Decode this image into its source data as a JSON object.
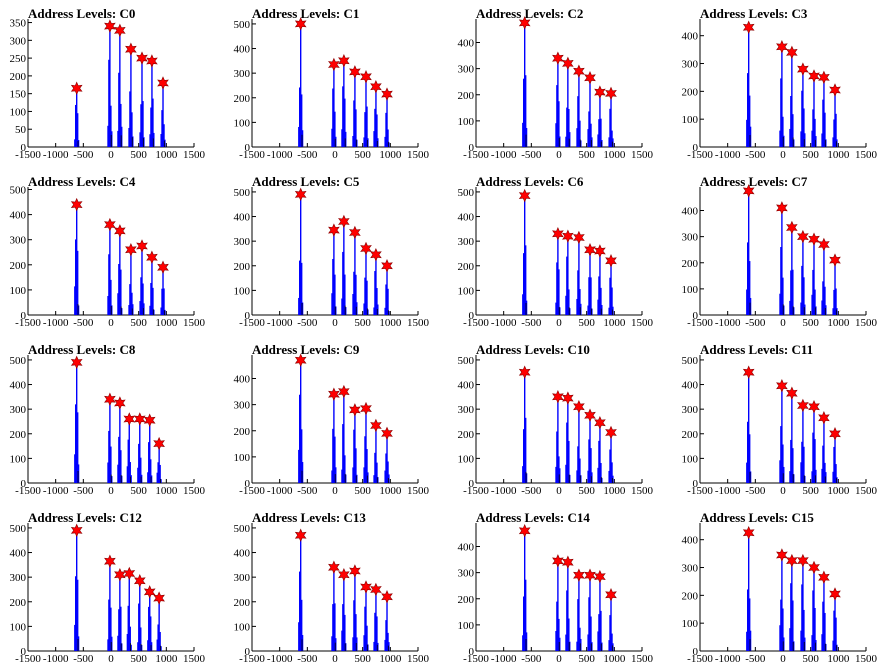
{
  "chart_data": [
    {
      "type": "bar",
      "title": "Address Levels: C0",
      "xlim": [
        -1500,
        1500
      ],
      "ylim": [
        0,
        360
      ],
      "yticks": [
        0,
        50,
        100,
        150,
        200,
        250,
        300,
        350
      ],
      "xticks": [
        -1500,
        -1000,
        -500,
        0,
        500,
        1000,
        1500
      ],
      "peaks": [
        {
          "x": -620,
          "y": 165
        },
        {
          "x": -20,
          "y": 340
        },
        {
          "x": 160,
          "y": 328
        },
        {
          "x": 360,
          "y": 275
        },
        {
          "x": 560,
          "y": 250
        },
        {
          "x": 740,
          "y": 242
        },
        {
          "x": 940,
          "y": 180
        }
      ]
    },
    {
      "type": "bar",
      "title": "Address Levels: C1",
      "xlim": [
        -1500,
        1500
      ],
      "ylim": [
        0,
        520
      ],
      "yticks": [
        0,
        100,
        200,
        300,
        400,
        500
      ],
      "xticks": [
        -1500,
        -1000,
        -500,
        0,
        500,
        1000,
        1500
      ],
      "peaks": [
        {
          "x": -620,
          "y": 500
        },
        {
          "x": -20,
          "y": 335
        },
        {
          "x": 160,
          "y": 350
        },
        {
          "x": 360,
          "y": 305
        },
        {
          "x": 560,
          "y": 285
        },
        {
          "x": 740,
          "y": 245
        },
        {
          "x": 940,
          "y": 215
        }
      ]
    },
    {
      "type": "bar",
      "title": "Address Levels: C2",
      "xlim": [
        -1500,
        1500
      ],
      "ylim": [
        0,
        490
      ],
      "yticks": [
        0,
        100,
        200,
        300,
        400
      ],
      "xticks": [
        -1500,
        -1000,
        -500,
        0,
        500,
        1000,
        1500
      ],
      "peaks": [
        {
          "x": -620,
          "y": 475
        },
        {
          "x": -20,
          "y": 340
        },
        {
          "x": 160,
          "y": 320
        },
        {
          "x": 360,
          "y": 290
        },
        {
          "x": 560,
          "y": 265
        },
        {
          "x": 740,
          "y": 210
        },
        {
          "x": 940,
          "y": 205
        }
      ]
    },
    {
      "type": "bar",
      "title": "Address Levels: C3",
      "xlim": [
        -1500,
        1500
      ],
      "ylim": [
        0,
        460
      ],
      "yticks": [
        0,
        100,
        200,
        300,
        400
      ],
      "xticks": [
        -1500,
        -1000,
        -500,
        0,
        500,
        1000,
        1500
      ],
      "peaks": [
        {
          "x": -620,
          "y": 430
        },
        {
          "x": -20,
          "y": 360
        },
        {
          "x": 160,
          "y": 340
        },
        {
          "x": 360,
          "y": 280
        },
        {
          "x": 560,
          "y": 255
        },
        {
          "x": 740,
          "y": 250
        },
        {
          "x": 940,
          "y": 205
        }
      ]
    },
    {
      "type": "bar",
      "title": "Address Levels: C4",
      "xlim": [
        -1500,
        1500
      ],
      "ylim": [
        0,
        510
      ],
      "yticks": [
        0,
        100,
        200,
        300,
        400,
        500
      ],
      "xticks": [
        -1500,
        -1000,
        -500,
        0,
        500,
        1000,
        1500
      ],
      "peaks": [
        {
          "x": -620,
          "y": 440
        },
        {
          "x": -20,
          "y": 360
        },
        {
          "x": 160,
          "y": 335
        },
        {
          "x": 360,
          "y": 260
        },
        {
          "x": 560,
          "y": 275
        },
        {
          "x": 740,
          "y": 230
        },
        {
          "x": 940,
          "y": 190
        }
      ]
    },
    {
      "type": "bar",
      "title": "Address Levels: C5",
      "xlim": [
        -1500,
        1500
      ],
      "ylim": [
        0,
        520
      ],
      "yticks": [
        0,
        100,
        200,
        300,
        400,
        500
      ],
      "xticks": [
        -1500,
        -1000,
        -500,
        0,
        500,
        1000,
        1500
      ],
      "peaks": [
        {
          "x": -620,
          "y": 490
        },
        {
          "x": -20,
          "y": 345
        },
        {
          "x": 160,
          "y": 380
        },
        {
          "x": 360,
          "y": 335
        },
        {
          "x": 560,
          "y": 270
        },
        {
          "x": 740,
          "y": 245
        },
        {
          "x": 940,
          "y": 200
        }
      ]
    },
    {
      "type": "bar",
      "title": "Address Levels: C6",
      "xlim": [
        -1500,
        1500
      ],
      "ylim": [
        0,
        520
      ],
      "yticks": [
        0,
        100,
        200,
        300,
        400,
        500
      ],
      "xticks": [
        -1500,
        -1000,
        -500,
        0,
        500,
        1000,
        1500
      ],
      "peaks": [
        {
          "x": -620,
          "y": 485
        },
        {
          "x": -20,
          "y": 330
        },
        {
          "x": 160,
          "y": 320
        },
        {
          "x": 360,
          "y": 315
        },
        {
          "x": 560,
          "y": 265
        },
        {
          "x": 740,
          "y": 260
        },
        {
          "x": 940,
          "y": 220
        }
      ]
    },
    {
      "type": "bar",
      "title": "Address Levels: C7",
      "xlim": [
        -1500,
        1500
      ],
      "ylim": [
        0,
        490
      ],
      "yticks": [
        0,
        100,
        200,
        300,
        400
      ],
      "xticks": [
        -1500,
        -1000,
        -500,
        0,
        500,
        1000,
        1500
      ],
      "peaks": [
        {
          "x": -620,
          "y": 475
        },
        {
          "x": -20,
          "y": 410
        },
        {
          "x": 160,
          "y": 335
        },
        {
          "x": 360,
          "y": 300
        },
        {
          "x": 560,
          "y": 290
        },
        {
          "x": 740,
          "y": 270
        },
        {
          "x": 940,
          "y": 210
        }
      ]
    },
    {
      "type": "bar",
      "title": "Address Levels: C8",
      "xlim": [
        -1500,
        1500
      ],
      "ylim": [
        0,
        520
      ],
      "yticks": [
        0,
        100,
        200,
        300,
        400,
        500
      ],
      "xticks": [
        -1500,
        -1000,
        -500,
        0,
        500,
        1000,
        1500
      ],
      "peaks": [
        {
          "x": -620,
          "y": 490
        },
        {
          "x": -20,
          "y": 340
        },
        {
          "x": 160,
          "y": 325
        },
        {
          "x": 330,
          "y": 260
        },
        {
          "x": 520,
          "y": 260
        },
        {
          "x": 700,
          "y": 255
        },
        {
          "x": 870,
          "y": 160
        }
      ]
    },
    {
      "type": "bar",
      "title": "Address Levels: C9",
      "xlim": [
        -1500,
        1500
      ],
      "ylim": [
        0,
        490
      ],
      "yticks": [
        0,
        100,
        200,
        300,
        400
      ],
      "xticks": [
        -1500,
        -1000,
        -500,
        0,
        500,
        1000,
        1500
      ],
      "peaks": [
        {
          "x": -620,
          "y": 470
        },
        {
          "x": -20,
          "y": 340
        },
        {
          "x": 160,
          "y": 350
        },
        {
          "x": 360,
          "y": 280
        },
        {
          "x": 560,
          "y": 285
        },
        {
          "x": 740,
          "y": 220
        },
        {
          "x": 940,
          "y": 190
        }
      ]
    },
    {
      "type": "bar",
      "title": "Address Levels: C10",
      "xlim": [
        -1500,
        1500
      ],
      "ylim": [
        0,
        520
      ],
      "yticks": [
        0,
        100,
        200,
        300,
        400,
        500
      ],
      "xticks": [
        -1500,
        -1000,
        -500,
        0,
        500,
        1000,
        1500
      ],
      "peaks": [
        {
          "x": -620,
          "y": 450
        },
        {
          "x": -20,
          "y": 350
        },
        {
          "x": 160,
          "y": 345
        },
        {
          "x": 360,
          "y": 310
        },
        {
          "x": 560,
          "y": 275
        },
        {
          "x": 740,
          "y": 245
        },
        {
          "x": 940,
          "y": 205
        }
      ]
    },
    {
      "type": "bar",
      "title": "Address Levels: C11",
      "xlim": [
        -1500,
        1500
      ],
      "ylim": [
        0,
        520
      ],
      "yticks": [
        0,
        100,
        200,
        300,
        400,
        500
      ],
      "xticks": [
        -1500,
        -1000,
        -500,
        0,
        500,
        1000,
        1500
      ],
      "peaks": [
        {
          "x": -620,
          "y": 450
        },
        {
          "x": -20,
          "y": 395
        },
        {
          "x": 160,
          "y": 365
        },
        {
          "x": 360,
          "y": 315
        },
        {
          "x": 560,
          "y": 310
        },
        {
          "x": 740,
          "y": 265
        },
        {
          "x": 940,
          "y": 200
        }
      ]
    },
    {
      "type": "bar",
      "title": "Address Levels: C12",
      "xlim": [
        -1500,
        1500
      ],
      "ylim": [
        0,
        520
      ],
      "yticks": [
        0,
        100,
        200,
        300,
        400,
        500
      ],
      "xticks": [
        -1500,
        -1000,
        -500,
        0,
        500,
        1000,
        1500
      ],
      "peaks": [
        {
          "x": -620,
          "y": 490
        },
        {
          "x": -20,
          "y": 365
        },
        {
          "x": 160,
          "y": 310
        },
        {
          "x": 330,
          "y": 315
        },
        {
          "x": 520,
          "y": 285
        },
        {
          "x": 700,
          "y": 240
        },
        {
          "x": 870,
          "y": 215
        }
      ]
    },
    {
      "type": "bar",
      "title": "Address Levels: C13",
      "xlim": [
        -1500,
        1500
      ],
      "ylim": [
        0,
        520
      ],
      "yticks": [
        0,
        100,
        200,
        300,
        400,
        500
      ],
      "xticks": [
        -1500,
        -1000,
        -500,
        0,
        500,
        1000,
        1500
      ],
      "peaks": [
        {
          "x": -620,
          "y": 470
        },
        {
          "x": -20,
          "y": 340
        },
        {
          "x": 160,
          "y": 310
        },
        {
          "x": 360,
          "y": 325
        },
        {
          "x": 560,
          "y": 260
        },
        {
          "x": 740,
          "y": 250
        },
        {
          "x": 940,
          "y": 220
        }
      ]
    },
    {
      "type": "bar",
      "title": "Address Levels: C14",
      "xlim": [
        -1500,
        1500
      ],
      "ylim": [
        0,
        490
      ],
      "yticks": [
        0,
        100,
        200,
        300,
        400
      ],
      "xticks": [
        -1500,
        -1000,
        -500,
        0,
        500,
        1000,
        1500
      ],
      "peaks": [
        {
          "x": -620,
          "y": 460
        },
        {
          "x": -20,
          "y": 345
        },
        {
          "x": 160,
          "y": 340
        },
        {
          "x": 360,
          "y": 290
        },
        {
          "x": 560,
          "y": 290
        },
        {
          "x": 740,
          "y": 285
        },
        {
          "x": 940,
          "y": 215
        }
      ]
    },
    {
      "type": "bar",
      "title": "Address Levels: C15",
      "xlim": [
        -1500,
        1500
      ],
      "ylim": [
        0,
        460
      ],
      "yticks": [
        0,
        100,
        200,
        300,
        400
      ],
      "xticks": [
        -1500,
        -1000,
        -500,
        0,
        500,
        1000,
        1500
      ],
      "peaks": [
        {
          "x": -620,
          "y": 425
        },
        {
          "x": -20,
          "y": 345
        },
        {
          "x": 160,
          "y": 325
        },
        {
          "x": 360,
          "y": 325
        },
        {
          "x": 560,
          "y": 300
        },
        {
          "x": 740,
          "y": 265
        },
        {
          "x": 940,
          "y": 205
        }
      ]
    }
  ],
  "colors": {
    "bars": "#0000ff",
    "marker_fill": "#ff0000",
    "axis": "#000000",
    "background": "#ffffff"
  },
  "marker_icon": "star-icon"
}
